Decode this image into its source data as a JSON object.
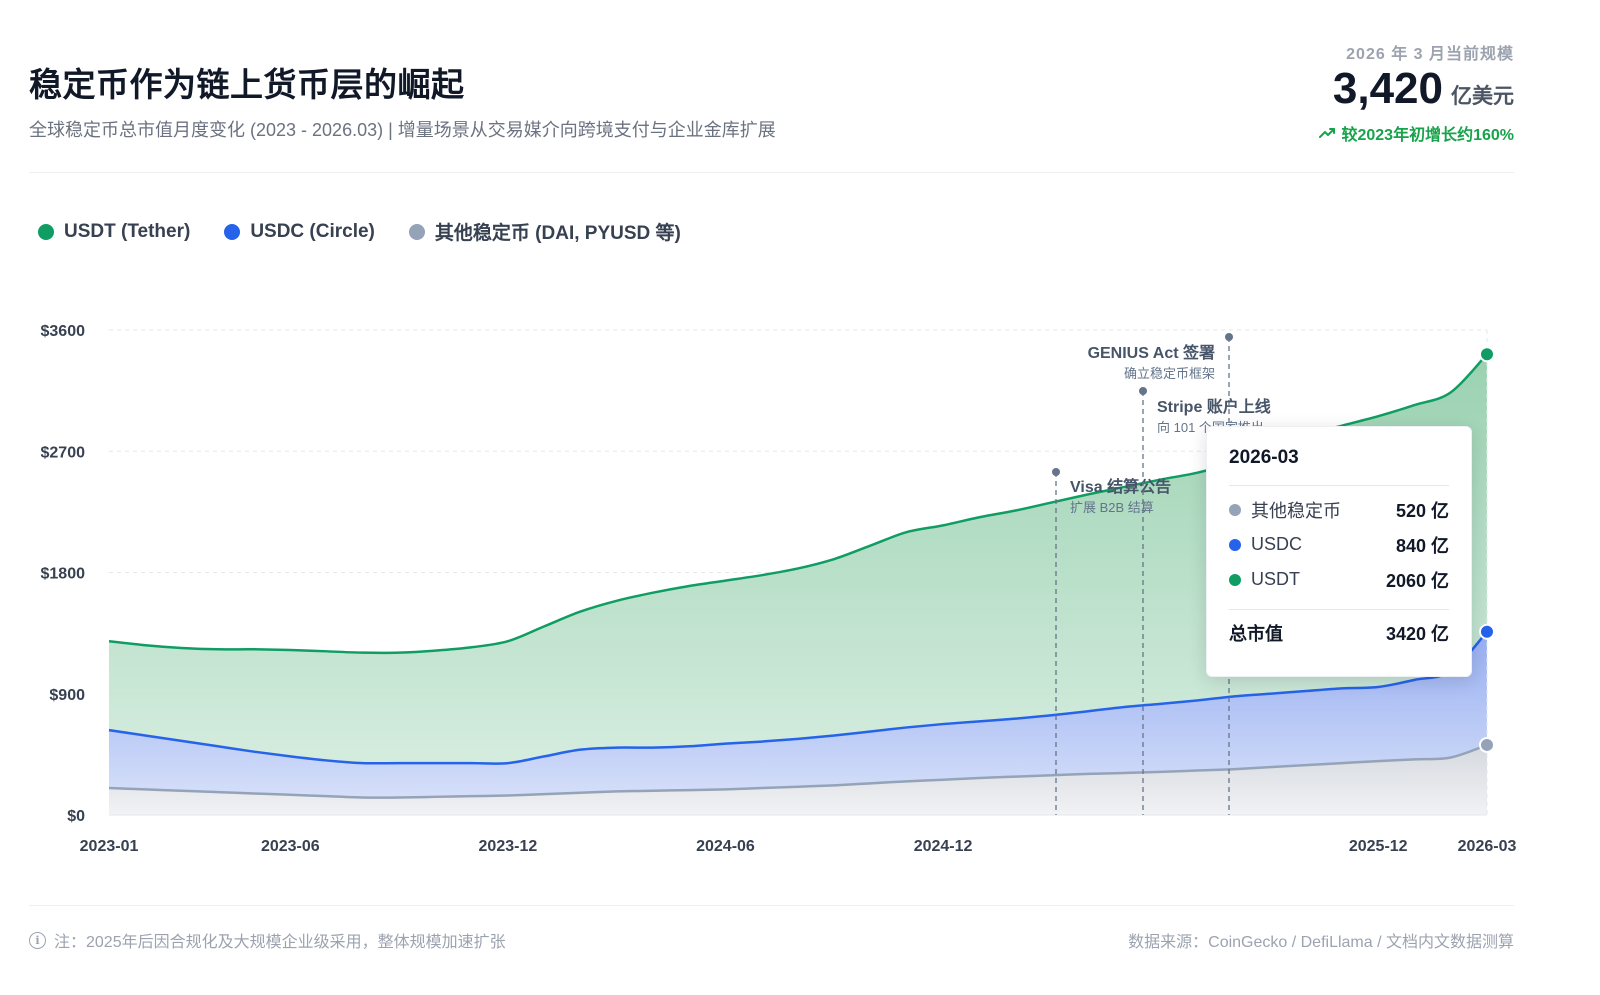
{
  "header": {
    "title": "稳定币作为链上货币层的崛起",
    "subtitle": "全球稳定币总市值月度变化 (2023 - 2026.03) | 增量场景从交易媒介向跨境支付与企业金库扩展"
  },
  "kpi": {
    "label": "2026 年 3 月当前规模",
    "value": "3,420",
    "unit": "亿美元",
    "growth": "较2023年初增长约160%",
    "growth_icon": "trend-up-icon"
  },
  "legend": [
    {
      "label": "USDT (Tether)",
      "color": "#0f9d63"
    },
    {
      "label": "USDC (Circle)",
      "color": "#2563eb"
    },
    {
      "label": "其他稳定币 (DAI, PYUSD 等)",
      "color": "#94a3b8"
    }
  ],
  "tooltip": {
    "title": "2026-03",
    "rows": [
      {
        "label": "其他稳定币",
        "value": "520 亿",
        "color": "#94a3b8"
      },
      {
        "label": "USDC",
        "value": "840 亿",
        "color": "#2563eb"
      },
      {
        "label": "USDT",
        "value": "2060 亿",
        "color": "#0f9d63"
      }
    ],
    "total_label": "总市值",
    "total_value": "3420 亿"
  },
  "footer": {
    "note": "注：2025年后因合规化及大规模企业级采用，整体规模加速扩张",
    "source": "数据来源：CoinGecko / DefiLlama / 文档内文数据测算"
  },
  "chart_data": {
    "type": "area",
    "stacked": true,
    "x": [
      "2023-01",
      "2023-02",
      "2023-03",
      "2023-04",
      "2023-05",
      "2023-06",
      "2023-07",
      "2023-08",
      "2023-09",
      "2023-10",
      "2023-11",
      "2023-12",
      "2024-01",
      "2024-02",
      "2024-03",
      "2024-04",
      "2024-05",
      "2024-06",
      "2024-07",
      "2024-08",
      "2024-09",
      "2024-10",
      "2024-11",
      "2024-12",
      "2025-01",
      "2025-02",
      "2025-03",
      "2025-04",
      "2025-05",
      "2025-06",
      "2025-07",
      "2025-08",
      "2025-09",
      "2025-10",
      "2025-11",
      "2025-12",
      "2026-01",
      "2026-02",
      "2026-03"
    ],
    "x_tick_labels": [
      "2023-01",
      "2023-06",
      "2023-12",
      "2024-06",
      "2024-12",
      "2025-12",
      "2026-03"
    ],
    "ylim": [
      0,
      3600
    ],
    "y_ticks": [
      0,
      900,
      1800,
      2700,
      3600
    ],
    "y_tick_labels": [
      "$0",
      "$900",
      "$1800",
      "$2700",
      "$3600"
    ],
    "grid": true,
    "legend_position": "top-left",
    "series": [
      {
        "name": "其他稳定币 (DAI, PYUSD 等)",
        "color": "#94a3b8",
        "values": [
          200,
          190,
          180,
          170,
          160,
          150,
          140,
          130,
          130,
          135,
          140,
          145,
          155,
          165,
          175,
          180,
          185,
          190,
          200,
          210,
          220,
          235,
          250,
          262,
          275,
          285,
          295,
          305,
          312,
          320,
          330,
          340,
          355,
          370,
          385,
          400,
          413,
          427,
          520
        ]
      },
      {
        "name": "USDC (Circle)",
        "color": "#2563eb",
        "values": [
          430,
          400,
          370,
          340,
          310,
          285,
          265,
          255,
          255,
          250,
          245,
          240,
          280,
          320,
          325,
          320,
          325,
          340,
          345,
          355,
          370,
          385,
          400,
          413,
          420,
          430,
          445,
          465,
          490,
          505,
          520,
          540,
          545,
          550,
          555,
          550,
          590,
          640,
          840
        ]
      },
      {
        "name": "USDT (Tether)",
        "color": "#0f9d63",
        "values": [
          660,
          670,
          690,
          720,
          760,
          790,
          810,
          820,
          820,
          835,
          860,
          905,
          965,
          1025,
          1090,
          1150,
          1190,
          1210,
          1235,
          1265,
          1310,
          1380,
          1450,
          1475,
          1515,
          1545,
          1580,
          1610,
          1633,
          1665,
          1690,
          1730,
          1800,
          1900,
          1950,
          2010,
          2040,
          2070,
          2060
        ]
      }
    ],
    "totals": [
      1290,
      1260,
      1240,
      1230,
      1230,
      1225,
      1215,
      1205,
      1205,
      1220,
      1245,
      1290,
      1400,
      1510,
      1590,
      1650,
      1700,
      1740,
      1780,
      1830,
      1900,
      2000,
      2100,
      2150,
      2210,
      2260,
      2320,
      2380,
      2435,
      2490,
      2540,
      2610,
      2700,
      2820,
      2890,
      2960,
      3043,
      3137,
      3420
    ],
    "annotations": [
      {
        "month": "2025-06",
        "title": "Visa 结算公告",
        "subtitle": "扩展 B2B 结算"
      },
      {
        "month": "2025-07",
        "title": "GENIUS Act 签署",
        "subtitle": "确立稳定币框架"
      },
      {
        "month": "2025-09",
        "title": "Stripe 账户上线",
        "subtitle": "向 101 个国家推出"
      }
    ]
  }
}
